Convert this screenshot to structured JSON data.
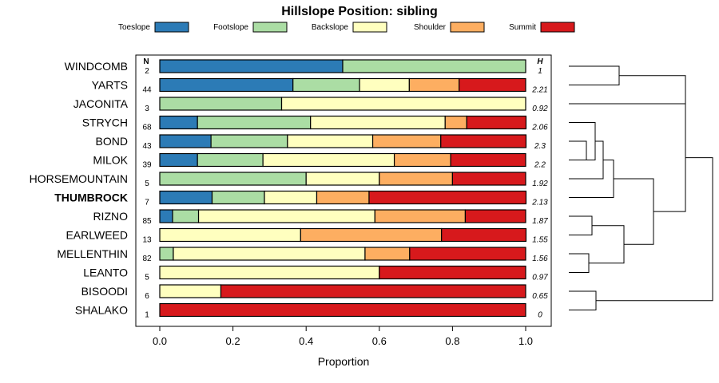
{
  "chart_data": {
    "type": "bar",
    "stacked": true,
    "orientation": "horizontal",
    "title": "Hillslope Position: sibling",
    "xlabel": "Proportion",
    "ylabel": "",
    "xlim": [
      0,
      1
    ],
    "xticks": [
      "0.0",
      "0.2",
      "0.4",
      "0.6",
      "0.8",
      "1.0"
    ],
    "n_header": "N",
    "h_header": "H",
    "highlight": "THUMBROCK",
    "legend": [
      {
        "name": "Toeslope",
        "color": "#2c7bb6"
      },
      {
        "name": "Footslope",
        "color": "#abdda4"
      },
      {
        "name": "Backslope",
        "color": "#ffffbf"
      },
      {
        "name": "Shoulder",
        "color": "#fdae61"
      },
      {
        "name": "Summit",
        "color": "#d7191c"
      }
    ],
    "categories": [
      "WINDCOMB",
      "YARTS",
      "JACONITA",
      "STRYCH",
      "BOND",
      "MILOK",
      "HORSEMOUNTAIN",
      "THUMBROCK",
      "RIZNO",
      "EARLWEED",
      "MELLENTHIN",
      "LEANTO",
      "BISOODI",
      "SHALAKO"
    ],
    "n": [
      "2",
      "44",
      "3",
      "68",
      "43",
      "39",
      "5",
      "7",
      "85",
      "13",
      "82",
      "5",
      "6",
      "1"
    ],
    "h": [
      "1",
      "2.21",
      "0.92",
      "2.06",
      "2.3",
      "2.2",
      "1.92",
      "2.13",
      "1.87",
      "1.55",
      "1.56",
      "0.97",
      "0.65",
      "0"
    ],
    "series": [
      {
        "name": "Toeslope",
        "values": [
          0.5,
          0.364,
          0,
          0.103,
          0.14,
          0.103,
          0,
          0.143,
          0.035,
          0,
          0,
          0,
          0,
          0
        ]
      },
      {
        "name": "Footslope",
        "values": [
          0.5,
          0.182,
          0.333,
          0.309,
          0.209,
          0.179,
          0.4,
          0.143,
          0.071,
          0,
          0.037,
          0,
          0,
          0
        ]
      },
      {
        "name": "Backslope",
        "values": [
          0,
          0.136,
          0.667,
          0.368,
          0.233,
          0.359,
          0.2,
          0.143,
          0.482,
          0.385,
          0.524,
          0.6,
          0.167,
          0
        ]
      },
      {
        "name": "Shoulder",
        "values": [
          0,
          0.136,
          0,
          0.059,
          0.186,
          0.154,
          0.2,
          0.143,
          0.247,
          0.385,
          0.122,
          0,
          0,
          0
        ]
      },
      {
        "name": "Summit",
        "values": [
          0,
          0.182,
          0,
          0.162,
          0.233,
          0.205,
          0.2,
          0.429,
          0.165,
          0.231,
          0.317,
          0.4,
          0.833,
          1.0
        ]
      }
    ],
    "dendrogram_order": [
      "WINDCOMB",
      "YARTS",
      "JACONITA",
      "STRYCH",
      "BOND",
      "MILOK",
      "HORSEMOUNTAIN",
      "THUMBROCK",
      "RIZNO",
      "EARLWEED",
      "MELLENTHIN",
      "LEANTO",
      "BISOODI",
      "SHALAKO"
    ]
  }
}
